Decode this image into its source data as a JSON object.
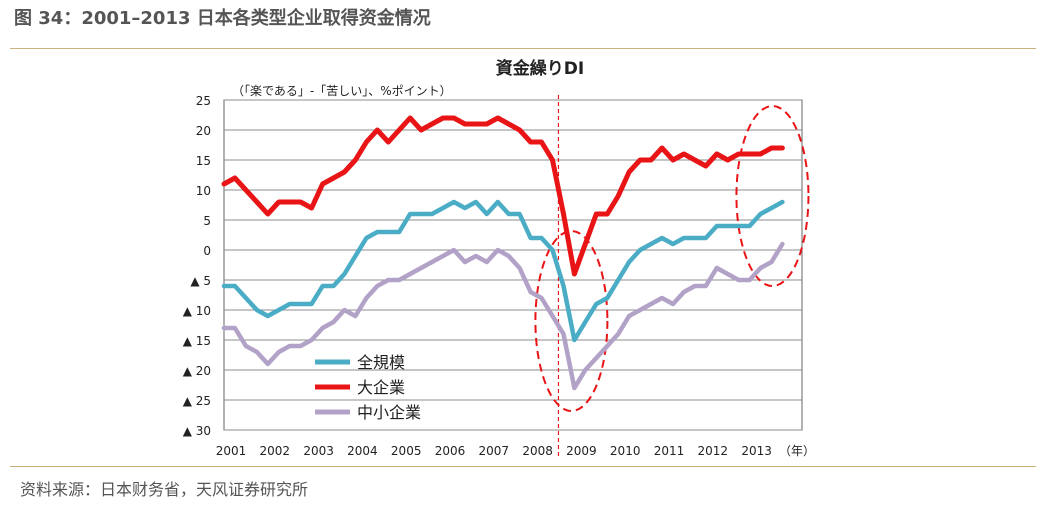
{
  "figure_title": "图 34：2001–2013 日本各类型企业取得资金情况",
  "source": "资料来源：日本财务省，天风证券研究所",
  "colors": {
    "all_enterprises": "#4bacc6",
    "large_enterprises": "#e81416",
    "sme": "#b3a2c7",
    "annotation": "#e81416",
    "grid": "#8c8c8c"
  },
  "chart_data": {
    "type": "line",
    "title": "資金繰りDI",
    "ylabel": "（「楽である」-「苦しい」、%ポイント）",
    "x_unit_label": "（年）",
    "ylim": [
      -30,
      25
    ],
    "y_ticks": [
      {
        "value": 25,
        "label": "25"
      },
      {
        "value": 20,
        "label": "20"
      },
      {
        "value": 15,
        "label": "15"
      },
      {
        "value": 10,
        "label": "10"
      },
      {
        "value": 5,
        "label": "5"
      },
      {
        "value": 0,
        "label": "0"
      },
      {
        "value": -5,
        "label": "▲ 5"
      },
      {
        "value": -10,
        "label": "▲ 10"
      },
      {
        "value": -15,
        "label": "▲ 15"
      },
      {
        "value": -20,
        "label": "▲ 20"
      },
      {
        "value": -25,
        "label": "▲ 25"
      },
      {
        "value": -30,
        "label": "▲ 30"
      }
    ],
    "x_ticks": [
      "2001",
      "2002",
      "2003",
      "2004",
      "2005",
      "2006",
      "2007",
      "2008",
      "2009",
      "2010",
      "2011",
      "2012",
      "2013"
    ],
    "x_start": 2001,
    "x_step": 0.25,
    "grid": true,
    "legend_position": "bottom-left",
    "marker_line_year": 2008.75,
    "series": [
      {
        "name": "全規模",
        "color_key": "all_enterprises",
        "values": [
          -6,
          -6,
          -8,
          -10,
          -11,
          -10,
          -9,
          -9,
          -9,
          -6,
          -6,
          -4,
          -1,
          2,
          3,
          3,
          3,
          6,
          6,
          6,
          7,
          8,
          7,
          8,
          6,
          8,
          6,
          6,
          2,
          2,
          0,
          -6,
          -15,
          -12,
          -9,
          -8,
          -5,
          -2,
          0,
          1,
          2,
          1,
          2,
          2,
          2,
          4,
          4,
          4,
          4,
          6,
          7,
          8
        ]
      },
      {
        "name": "大企業",
        "color_key": "large_enterprises",
        "values": [
          11,
          12,
          10,
          8,
          6,
          8,
          8,
          8,
          7,
          11,
          12,
          13,
          15,
          18,
          20,
          18,
          20,
          22,
          20,
          21,
          22,
          22,
          21,
          21,
          21,
          22,
          21,
          20,
          18,
          18,
          15,
          6,
          -4,
          1,
          6,
          6,
          9,
          13,
          15,
          15,
          17,
          15,
          16,
          15,
          14,
          16,
          15,
          16,
          16,
          16,
          17,
          17
        ]
      },
      {
        "name": "中小企業",
        "color_key": "sme",
        "values": [
          -13,
          -13,
          -16,
          -17,
          -19,
          -17,
          -16,
          -16,
          -15,
          -13,
          -12,
          -10,
          -11,
          -8,
          -6,
          -5,
          -5,
          -4,
          -3,
          -2,
          -1,
          0,
          -2,
          -1,
          -2,
          0,
          -1,
          -3,
          -7,
          -8,
          -11,
          -14,
          -23,
          -20,
          -18,
          -16,
          -14,
          -11,
          -10,
          -9,
          -8,
          -9,
          -7,
          -6,
          -6,
          -3,
          -4,
          -5,
          -5,
          -3,
          -2,
          1
        ]
      }
    ]
  }
}
